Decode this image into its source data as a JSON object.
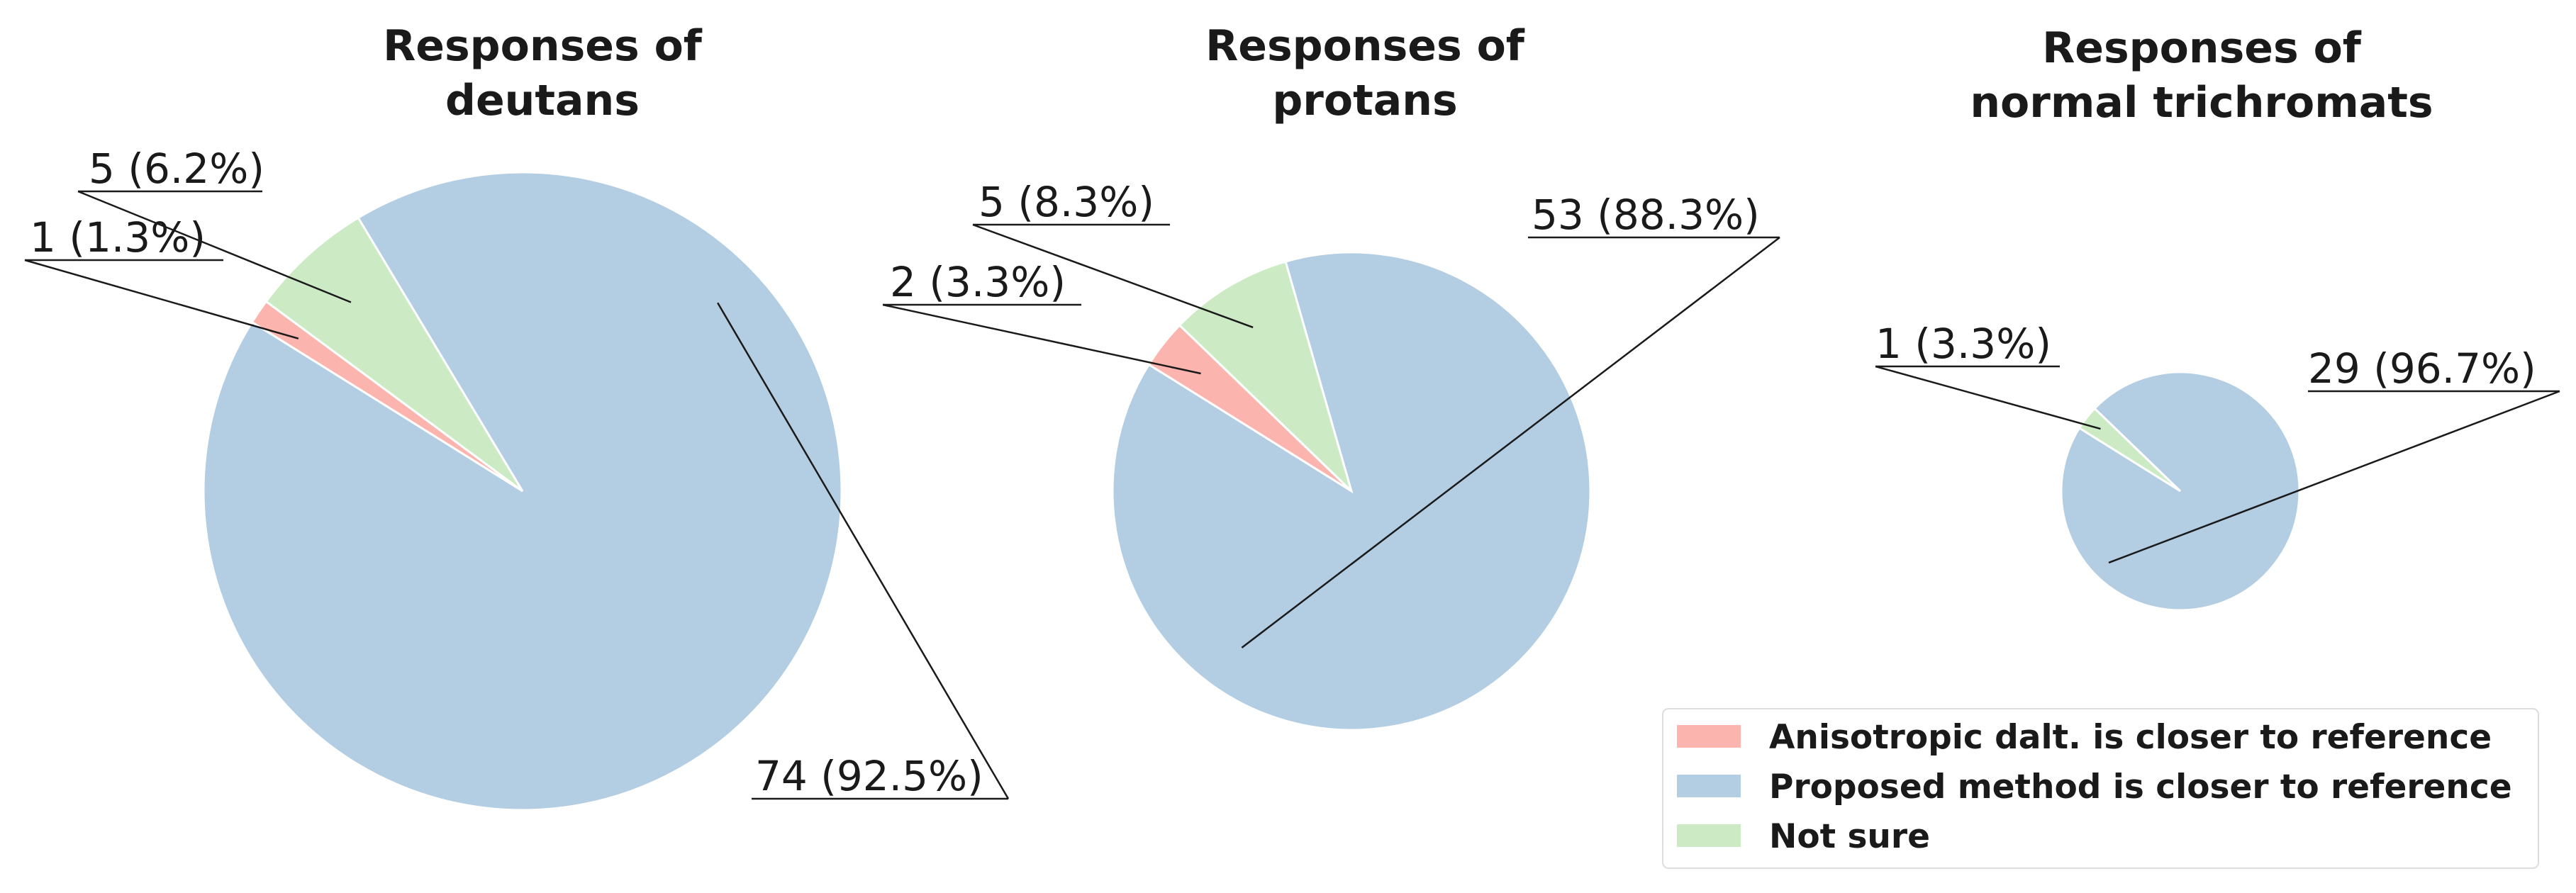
{
  "colors": {
    "anisotropic": "#fbb4ae",
    "proposed": "#b3cde3",
    "not_sure": "#ccebc5"
  },
  "legend": {
    "placement": "lower-right",
    "items": [
      {
        "label": "Anisotropic dalt. is closer to reference",
        "color_key": "anisotropic"
      },
      {
        "label": "Proposed method is closer to reference",
        "color_key": "proposed"
      },
      {
        "label": "Not sure",
        "color_key": "not_sure"
      }
    ]
  },
  "chart_data": [
    {
      "type": "pie",
      "title": [
        "Responses of",
        "deutans"
      ],
      "slices": [
        {
          "name": "Anisotropic dalt. is closer to reference",
          "value": 1,
          "label": "1 (1.3%)"
        },
        {
          "name": "Not sure",
          "value": 5,
          "label": "5 (6.2%)"
        },
        {
          "name": "Proposed method is closer to reference",
          "value": 74,
          "label": "74 (92.5%)"
        }
      ]
    },
    {
      "type": "pie",
      "title": [
        "Responses of",
        "protans"
      ],
      "slices": [
        {
          "name": "Anisotropic dalt. is closer to reference",
          "value": 2,
          "label": "2 (3.3%)"
        },
        {
          "name": "Not sure",
          "value": 5,
          "label": "5 (8.3%)"
        },
        {
          "name": "Proposed method is closer to reference",
          "value": 53,
          "label": "53 (88.3%)"
        }
      ]
    },
    {
      "type": "pie",
      "title": [
        "Responses of",
        "normal trichromats"
      ],
      "slices": [
        {
          "name": "Anisotropic dalt. is closer to reference",
          "value": 0,
          "label": ""
        },
        {
          "name": "Not sure",
          "value": 1,
          "label": "1 (3.3%)"
        },
        {
          "name": "Proposed method is closer to reference",
          "value": 29,
          "label": "29 (96.7%)"
        }
      ]
    }
  ]
}
